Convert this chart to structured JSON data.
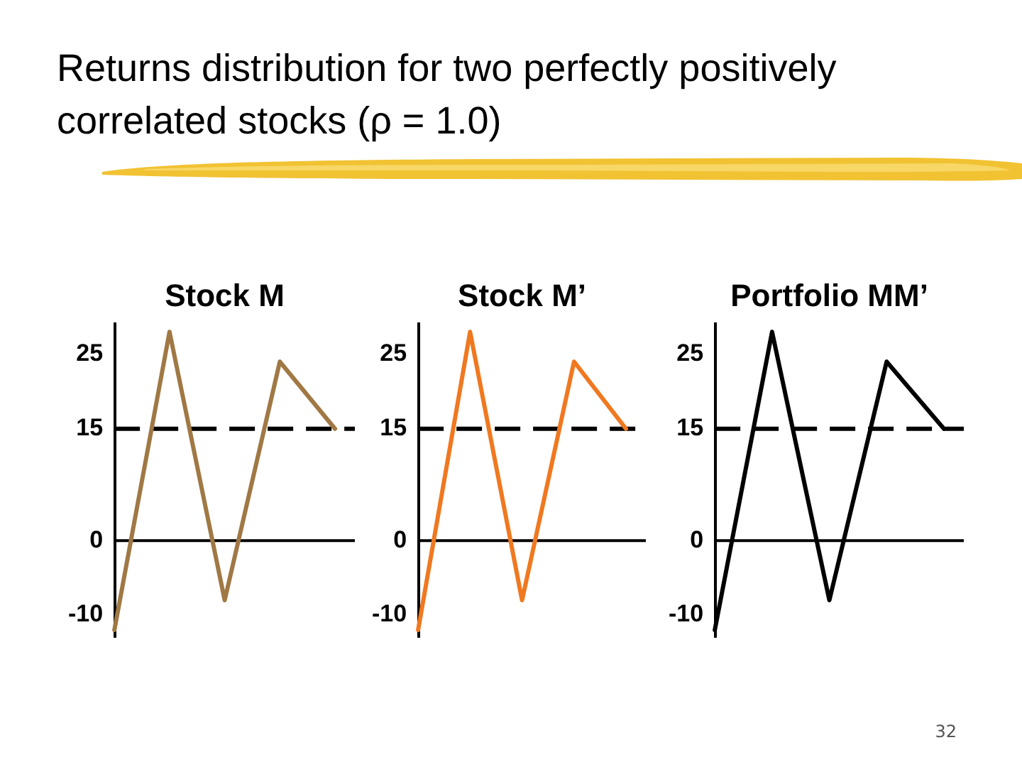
{
  "chart_data": [
    {
      "type": "other",
      "title": "Returns distribution for two perfectly positively correlated stocks (ρ = 1.0)",
      "annotations": [
        "32"
      ]
    },
    {
      "type": "line",
      "title": "Stock M",
      "categories": [
        null,
        null,
        null,
        null,
        null
      ],
      "series": [
        {
          "color": "#a07844",
          "values": [
            -12,
            28,
            -8,
            24,
            15
          ]
        }
      ],
      "ylim": [
        -13,
        29
      ],
      "yticks": [
        -10,
        0,
        15,
        25
      ],
      "marker": "none",
      "line_style": "solid",
      "ref_lines": [
        {
          "axis": "y",
          "value": 15,
          "line_style": "dashed",
          "color": "#000000"
        },
        {
          "axis": "y",
          "value": 0,
          "color": "#000000"
        }
      ]
    },
    {
      "type": "line",
      "title": "Stock M’",
      "categories": [
        null,
        null,
        null,
        null,
        null
      ],
      "series": [
        {
          "color": "#f07820",
          "values": [
            -12,
            28,
            -8,
            24,
            15
          ]
        }
      ],
      "ylim": [
        -13,
        29
      ],
      "yticks": [
        -10,
        0,
        15,
        25
      ],
      "marker": "none",
      "line_style": "solid",
      "ref_lines": [
        {
          "axis": "y",
          "value": 15,
          "line_style": "dashed",
          "color": "#000000"
        },
        {
          "axis": "y",
          "value": 0,
          "color": "#000000"
        }
      ]
    },
    {
      "type": "line",
      "title": "Portfolio MM’",
      "categories": [
        null,
        null,
        null,
        null,
        null
      ],
      "series": [
        {
          "color": "#000000",
          "values": [
            -12,
            28,
            -8,
            24,
            15
          ]
        }
      ],
      "ylim": [
        -13,
        29
      ],
      "yticks": [
        -10,
        0,
        15,
        25
      ],
      "marker": "none",
      "line_style": "solid",
      "ref_lines": [
        {
          "axis": "y",
          "value": 15,
          "line_style": "dashed",
          "color": "#000000"
        },
        {
          "axis": "y",
          "value": 0,
          "color": "#000000"
        }
      ]
    }
  ]
}
